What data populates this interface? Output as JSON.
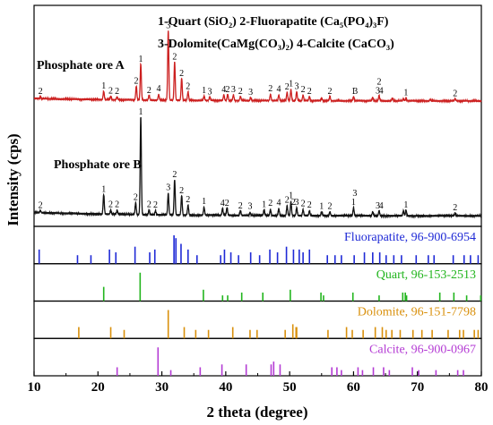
{
  "chart_data": {
    "type": "line",
    "xlabel": "2 theta (degree)",
    "ylabel": "Intensity (cps)",
    "xlim": [
      10,
      80
    ],
    "xticks": [
      10,
      20,
      30,
      40,
      50,
      60,
      70,
      80
    ],
    "legend": {
      "placement": "top-right",
      "lines": [
        "1-Quart (SiO₂)   2-Fluorapatite (Ca₅(PO₄)₃F)",
        "3-Dolomite(CaMg(CO₃)₂)   4-Calcite (CaCO₃)"
      ],
      "colors": [
        "#000000",
        "#000000"
      ]
    },
    "series": [
      {
        "name": "Phosphate ore A",
        "color": "#cc1f1f",
        "peaks": [
          [
            11.0,
            0.03
          ],
          [
            20.9,
            0.12
          ],
          [
            22.0,
            0.05
          ],
          [
            23.0,
            0.04
          ],
          [
            26.0,
            0.2
          ],
          [
            26.7,
            0.52
          ],
          [
            28.0,
            0.07
          ],
          [
            29.5,
            0.08
          ],
          [
            31.0,
            1.0
          ],
          [
            32.0,
            0.55
          ],
          [
            33.1,
            0.32
          ],
          [
            34.1,
            0.12
          ],
          [
            36.6,
            0.06
          ],
          [
            37.5,
            0.05
          ],
          [
            39.7,
            0.08
          ],
          [
            40.3,
            0.09
          ],
          [
            41.2,
            0.08
          ],
          [
            42.3,
            0.06
          ],
          [
            43.9,
            0.04
          ],
          [
            47.0,
            0.09
          ],
          [
            48.3,
            0.08
          ],
          [
            49.6,
            0.12
          ],
          [
            50.2,
            0.16
          ],
          [
            51.1,
            0.13
          ],
          [
            52.1,
            0.08
          ],
          [
            53.1,
            0.06
          ],
          [
            55.0,
            0.04
          ],
          [
            56.3,
            0.06
          ],
          [
            60.0,
            0.06
          ],
          [
            63.0,
            0.05
          ],
          [
            64.0,
            0.07
          ],
          [
            66.1,
            0.04
          ],
          [
            67.8,
            0.03
          ],
          [
            68.2,
            0.04
          ],
          [
            72.0,
            0.02
          ],
          [
            75.9,
            0.03
          ]
        ],
        "peak_labels": [
          [
            11.0,
            "2"
          ],
          [
            20.9,
            "1"
          ],
          [
            22.0,
            "2"
          ],
          [
            23.0,
            "2"
          ],
          [
            26.0,
            "2"
          ],
          [
            26.7,
            "1"
          ],
          [
            28.0,
            "2"
          ],
          [
            29.5,
            "4"
          ],
          [
            31.0,
            "3"
          ],
          [
            32.0,
            "2"
          ],
          [
            33.1,
            "2"
          ],
          [
            34.1,
            "2"
          ],
          [
            36.6,
            "1"
          ],
          [
            37.5,
            "3"
          ],
          [
            39.7,
            "4"
          ],
          [
            40.3,
            "2"
          ],
          [
            41.2,
            "3"
          ],
          [
            42.3,
            "2"
          ],
          [
            43.9,
            "3"
          ],
          [
            47.0,
            "2"
          ],
          [
            48.3,
            "4"
          ],
          [
            49.6,
            "2"
          ],
          [
            50.2,
            "1"
          ],
          [
            51.1,
            "3"
          ],
          [
            52.1,
            "2"
          ],
          [
            53.1,
            "2"
          ],
          [
            56.3,
            "2"
          ],
          [
            60.0,
            "1"
          ],
          [
            60.3,
            "3"
          ],
          [
            63.8,
            "3"
          ],
          [
            64.3,
            "4"
          ],
          [
            64.0,
            "2"
          ],
          [
            68.2,
            "1"
          ],
          [
            75.9,
            "2"
          ]
        ]
      },
      {
        "name": "Phosphate ore B",
        "color": "#111111",
        "peaks": [
          [
            11.0,
            0.02
          ],
          [
            20.9,
            0.2
          ],
          [
            22.0,
            0.04
          ],
          [
            23.0,
            0.04
          ],
          [
            25.9,
            0.12
          ],
          [
            26.7,
            1.0
          ],
          [
            28.0,
            0.05
          ],
          [
            29.0,
            0.04
          ],
          [
            31.0,
            0.22
          ],
          [
            32.0,
            0.36
          ],
          [
            33.1,
            0.2
          ],
          [
            34.1,
            0.1
          ],
          [
            36.6,
            0.08
          ],
          [
            39.5,
            0.07
          ],
          [
            40.2,
            0.08
          ],
          [
            42.3,
            0.05
          ],
          [
            43.8,
            0.03
          ],
          [
            46.0,
            0.06
          ],
          [
            47.0,
            0.06
          ],
          [
            48.3,
            0.07
          ],
          [
            49.6,
            0.1
          ],
          [
            50.2,
            0.14
          ],
          [
            51.1,
            0.08
          ],
          [
            52.1,
            0.06
          ],
          [
            53.1,
            0.05
          ],
          [
            55.0,
            0.04
          ],
          [
            56.3,
            0.04
          ],
          [
            60.0,
            0.08
          ],
          [
            63.0,
            0.04
          ],
          [
            64.0,
            0.05
          ],
          [
            67.8,
            0.05
          ],
          [
            68.2,
            0.06
          ],
          [
            75.9,
            0.03
          ]
        ],
        "peak_labels": [
          [
            11.0,
            "2"
          ],
          [
            20.9,
            "1"
          ],
          [
            22.0,
            "2"
          ],
          [
            23.0,
            "2"
          ],
          [
            25.9,
            "2"
          ],
          [
            26.7,
            "1"
          ],
          [
            28.0,
            "2"
          ],
          [
            29.0,
            "2"
          ],
          [
            31.0,
            "3"
          ],
          [
            32.0,
            "2"
          ],
          [
            33.1,
            "2"
          ],
          [
            34.1,
            "2"
          ],
          [
            36.6,
            "1"
          ],
          [
            39.5,
            "4"
          ],
          [
            40.2,
            "2"
          ],
          [
            42.3,
            "2"
          ],
          [
            43.8,
            "3"
          ],
          [
            46.0,
            "1"
          ],
          [
            47.0,
            "2"
          ],
          [
            48.3,
            "4"
          ],
          [
            49.6,
            "2"
          ],
          [
            50.2,
            "1"
          ],
          [
            50.6,
            "2"
          ],
          [
            51.1,
            "3"
          ],
          [
            52.1,
            "2"
          ],
          [
            53.1,
            "2"
          ],
          [
            55.0,
            "1"
          ],
          [
            56.3,
            "2"
          ],
          [
            60.0,
            "1"
          ],
          [
            60.2,
            "3"
          ],
          [
            63.8,
            "3"
          ],
          [
            64.3,
            "4"
          ],
          [
            68.2,
            "1"
          ],
          [
            75.9,
            "2"
          ]
        ]
      }
    ],
    "references": [
      {
        "name": "Fluorapatite",
        "label": "Fluorapatite, 96-900-6954",
        "color": "#1f2ad6",
        "sticks": [
          [
            10.8,
            0.5
          ],
          [
            16.8,
            0.3
          ],
          [
            18.9,
            0.3
          ],
          [
            21.8,
            0.5
          ],
          [
            22.8,
            0.4
          ],
          [
            25.8,
            0.6
          ],
          [
            28.1,
            0.4
          ],
          [
            28.9,
            0.5
          ],
          [
            31.9,
            1.0
          ],
          [
            32.2,
            0.9
          ],
          [
            33.0,
            0.7
          ],
          [
            34.1,
            0.5
          ],
          [
            35.5,
            0.3
          ],
          [
            39.2,
            0.3
          ],
          [
            39.8,
            0.5
          ],
          [
            40.8,
            0.4
          ],
          [
            42.0,
            0.3
          ],
          [
            43.9,
            0.4
          ],
          [
            45.3,
            0.3
          ],
          [
            46.9,
            0.5
          ],
          [
            48.1,
            0.4
          ],
          [
            49.5,
            0.6
          ],
          [
            50.6,
            0.5
          ],
          [
            51.5,
            0.5
          ],
          [
            52.1,
            0.4
          ],
          [
            53.1,
            0.5
          ],
          [
            55.9,
            0.3
          ],
          [
            57.1,
            0.3
          ],
          [
            58.1,
            0.3
          ],
          [
            60.1,
            0.3
          ],
          [
            61.7,
            0.4
          ],
          [
            63.0,
            0.4
          ],
          [
            64.1,
            0.4
          ],
          [
            65.1,
            0.3
          ],
          [
            66.3,
            0.3
          ],
          [
            67.5,
            0.3
          ],
          [
            69.8,
            0.3
          ],
          [
            71.7,
            0.3
          ],
          [
            72.6,
            0.3
          ],
          [
            75.6,
            0.3
          ],
          [
            77.3,
            0.3
          ],
          [
            78.3,
            0.3
          ],
          [
            79.5,
            0.3
          ]
        ]
      },
      {
        "name": "Quart",
        "label": "Quart, 96-153-2513",
        "color": "#22b51e",
        "sticks": [
          [
            20.9,
            0.5
          ],
          [
            26.6,
            1.0
          ],
          [
            36.5,
            0.4
          ],
          [
            39.5,
            0.2
          ],
          [
            40.3,
            0.2
          ],
          [
            42.5,
            0.3
          ],
          [
            45.8,
            0.3
          ],
          [
            50.1,
            0.4
          ],
          [
            54.9,
            0.3
          ],
          [
            55.3,
            0.2
          ],
          [
            59.9,
            0.3
          ],
          [
            64.0,
            0.2
          ],
          [
            67.7,
            0.3
          ],
          [
            68.1,
            0.3
          ],
          [
            68.3,
            0.2
          ],
          [
            73.5,
            0.3
          ],
          [
            75.7,
            0.3
          ],
          [
            77.7,
            0.2
          ],
          [
            79.9,
            0.2
          ]
        ]
      },
      {
        "name": "Dolomite",
        "label": "Dolomite, 96-151-7798",
        "color": "#d9900c",
        "sticks": [
          [
            17.0,
            0.4
          ],
          [
            22.0,
            0.4
          ],
          [
            24.1,
            0.3
          ],
          [
            31.0,
            1.0
          ],
          [
            33.5,
            0.4
          ],
          [
            35.3,
            0.3
          ],
          [
            37.3,
            0.3
          ],
          [
            41.1,
            0.4
          ],
          [
            43.8,
            0.3
          ],
          [
            44.9,
            0.3
          ],
          [
            49.3,
            0.3
          ],
          [
            50.5,
            0.5
          ],
          [
            51.0,
            0.4
          ],
          [
            51.1,
            0.4
          ],
          [
            56.0,
            0.3
          ],
          [
            58.9,
            0.4
          ],
          [
            59.8,
            0.3
          ],
          [
            61.5,
            0.3
          ],
          [
            63.4,
            0.4
          ],
          [
            64.5,
            0.4
          ],
          [
            65.1,
            0.3
          ],
          [
            66.0,
            0.3
          ],
          [
            67.3,
            0.3
          ],
          [
            69.3,
            0.3
          ],
          [
            70.7,
            0.3
          ],
          [
            72.3,
            0.3
          ],
          [
            74.8,
            0.3
          ],
          [
            76.6,
            0.3
          ],
          [
            77.2,
            0.3
          ],
          [
            78.9,
            0.3
          ],
          [
            79.5,
            0.3
          ]
        ]
      },
      {
        "name": "Calcite",
        "label": "Calcite, 96-900-0967",
        "color": "#b43cd4",
        "sticks": [
          [
            23.0,
            0.3
          ],
          [
            29.4,
            1.0
          ],
          [
            31.4,
            0.2
          ],
          [
            36.0,
            0.3
          ],
          [
            39.4,
            0.4
          ],
          [
            43.2,
            0.4
          ],
          [
            47.1,
            0.4
          ],
          [
            47.5,
            0.5
          ],
          [
            48.5,
            0.4
          ],
          [
            56.6,
            0.3
          ],
          [
            57.4,
            0.3
          ],
          [
            58.1,
            0.2
          ],
          [
            60.7,
            0.3
          ],
          [
            61.4,
            0.2
          ],
          [
            63.1,
            0.3
          ],
          [
            64.7,
            0.3
          ],
          [
            65.6,
            0.2
          ],
          [
            69.2,
            0.3
          ],
          [
            70.2,
            0.2
          ],
          [
            72.9,
            0.2
          ],
          [
            76.3,
            0.2
          ],
          [
            77.2,
            0.2
          ]
        ]
      }
    ]
  }
}
